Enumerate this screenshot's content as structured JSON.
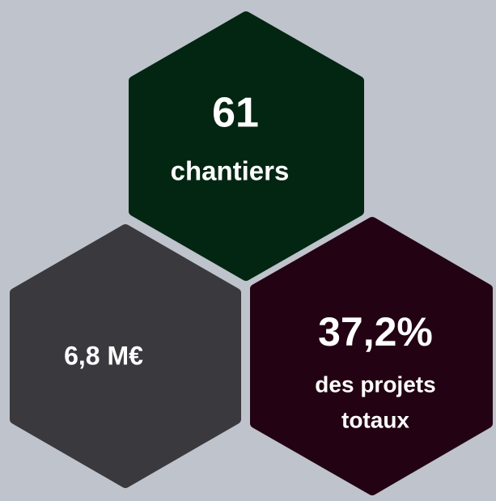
{
  "stats": [
    {
      "value": "61",
      "label": [
        "chantiers"
      ]
    },
    {
      "value": "6,8 M€",
      "label": []
    },
    {
      "value": "37,2%",
      "label": [
        "des projets",
        "totaux"
      ]
    }
  ]
}
